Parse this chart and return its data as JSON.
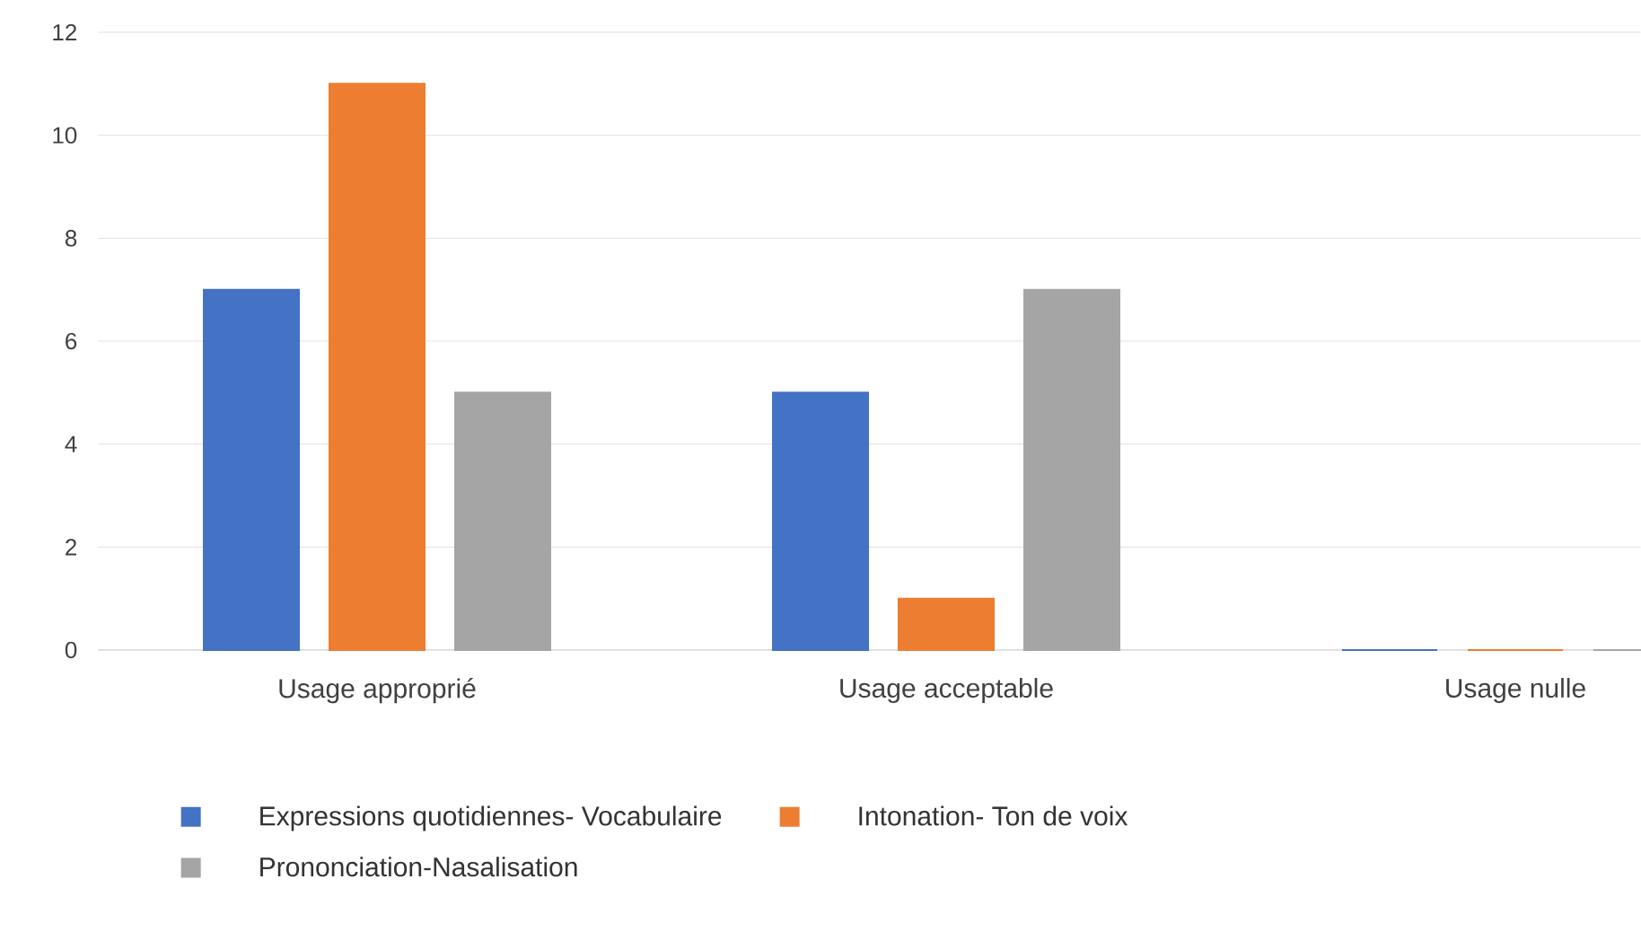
{
  "chart_data": {
    "type": "bar",
    "categories": [
      "Usage approprié",
      "Usage acceptable",
      "Usage nulle"
    ],
    "series": [
      {
        "name": "Expressions quotidiennes- Vocabulaire",
        "color": "#4472c4",
        "values": [
          7,
          5,
          0
        ]
      },
      {
        "name": "Intonation- Ton de voix",
        "color": "#ed7d31",
        "values": [
          11,
          1,
          0
        ]
      },
      {
        "name": "Prononciation-Nasalisation",
        "color": "#a5a5a5",
        "values": [
          5,
          7,
          0
        ]
      }
    ],
    "ylim": [
      0,
      12
    ],
    "yticks": [
      0,
      2,
      4,
      6,
      8,
      10,
      12
    ],
    "grid": "y",
    "legend": "bottom"
  }
}
